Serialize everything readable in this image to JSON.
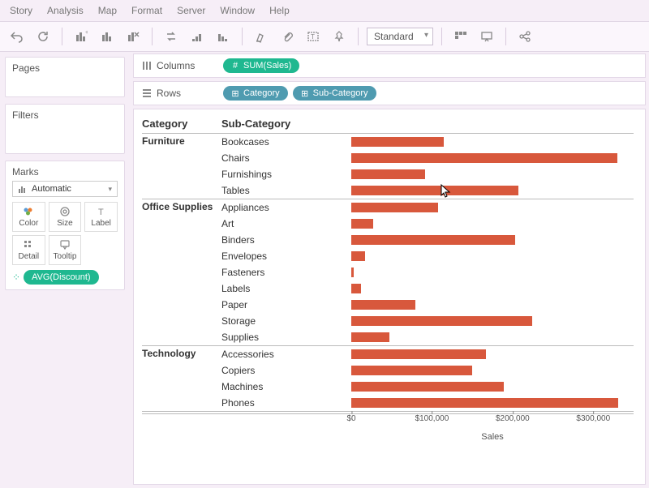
{
  "menubar": [
    "Story",
    "Analysis",
    "Map",
    "Format",
    "Server",
    "Window",
    "Help"
  ],
  "toolbar": {
    "fit_mode": "Standard"
  },
  "side": {
    "pages_title": "Pages",
    "filters_title": "Filters",
    "marks_title": "Marks",
    "marks_type": "Automatic",
    "mark_cells": [
      "Color",
      "Size",
      "Label",
      "Detail",
      "Tooltip"
    ],
    "marks_pill": "AVG(Discount)"
  },
  "shelves": {
    "columns_label": "Columns",
    "rows_label": "Rows",
    "columns_pills": [
      {
        "text": "SUM(Sales)",
        "type": "measure"
      }
    ],
    "rows_pills": [
      {
        "text": "Category",
        "type": "dim"
      },
      {
        "text": "Sub-Category",
        "type": "dim"
      }
    ]
  },
  "chart": {
    "header_category": "Category",
    "header_subcategory": "Sub-Category",
    "bar_color": "#d8583c",
    "x_max": 350000,
    "axis_title": "Sales",
    "ticks": [
      {
        "value": 0,
        "label": "$0"
      },
      {
        "value": 100000,
        "label": "$100,000"
      },
      {
        "value": 200000,
        "label": "$200,000"
      },
      {
        "value": 300000,
        "label": "$300,000"
      }
    ],
    "groups": [
      {
        "category": "Furniture",
        "rows": [
          {
            "sub": "Bookcases",
            "value": 115000
          },
          {
            "sub": "Chairs",
            "value": 330000
          },
          {
            "sub": "Furnishings",
            "value": 92000
          },
          {
            "sub": "Tables",
            "value": 207000
          }
        ]
      },
      {
        "category": "Office Supplies",
        "rows": [
          {
            "sub": "Appliances",
            "value": 108000
          },
          {
            "sub": "Art",
            "value": 27000
          },
          {
            "sub": "Binders",
            "value": 203000
          },
          {
            "sub": "Envelopes",
            "value": 17000
          },
          {
            "sub": "Fasteners",
            "value": 3000
          },
          {
            "sub": "Labels",
            "value": 12000
          },
          {
            "sub": "Paper",
            "value": 79000
          },
          {
            "sub": "Storage",
            "value": 224000
          },
          {
            "sub": "Supplies",
            "value": 47000
          }
        ]
      },
      {
        "category": "Technology",
        "rows": [
          {
            "sub": "Accessories",
            "value": 167000
          },
          {
            "sub": "Copiers",
            "value": 150000
          },
          {
            "sub": "Machines",
            "value": 189000
          },
          {
            "sub": "Phones",
            "value": 331000
          }
        ]
      }
    ]
  }
}
